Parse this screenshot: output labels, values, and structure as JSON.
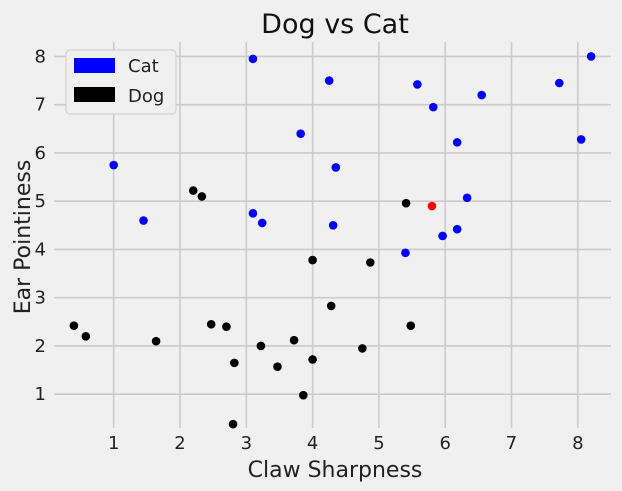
{
  "chart_data": {
    "type": "scatter",
    "title": "Dog vs Cat",
    "xlabel": "Claw Sharpness",
    "ylabel": "Ear Pointiness",
    "xlim": [
      0.1,
      8.5
    ],
    "ylim": [
      0.3,
      8.3
    ],
    "xticks": [
      1,
      2,
      3,
      4,
      5,
      6,
      7,
      8
    ],
    "yticks": [
      1,
      2,
      3,
      4,
      5,
      6,
      7,
      8
    ],
    "grid": true,
    "legend_position": "top-left",
    "series": [
      {
        "name": "Cat",
        "color": "#0000ff",
        "points": [
          [
            3.1,
            7.95
          ],
          [
            4.25,
            7.5
          ],
          [
            5.58,
            7.42
          ],
          [
            5.82,
            6.95
          ],
          [
            6.55,
            7.2
          ],
          [
            7.72,
            7.45
          ],
          [
            8.2,
            8.0
          ],
          [
            3.82,
            6.4
          ],
          [
            6.18,
            6.22
          ],
          [
            8.05,
            6.28
          ],
          [
            1.0,
            5.75
          ],
          [
            4.35,
            5.7
          ],
          [
            6.33,
            5.07
          ],
          [
            1.45,
            4.6
          ],
          [
            3.1,
            4.75
          ],
          [
            3.24,
            4.55
          ],
          [
            4.31,
            4.5
          ],
          [
            5.4,
            3.93
          ],
          [
            5.96,
            4.28
          ],
          [
            6.18,
            4.42
          ]
        ]
      },
      {
        "name": "Dog",
        "color": "#000000",
        "points": [
          [
            2.2,
            5.22
          ],
          [
            2.33,
            5.1
          ],
          [
            5.41,
            4.96
          ],
          [
            4.0,
            3.78
          ],
          [
            4.87,
            3.73
          ],
          [
            4.28,
            2.83
          ],
          [
            0.4,
            2.42
          ],
          [
            0.58,
            2.2
          ],
          [
            1.64,
            2.1
          ],
          [
            2.47,
            2.45
          ],
          [
            2.7,
            2.4
          ],
          [
            3.22,
            2.0
          ],
          [
            3.72,
            2.12
          ],
          [
            5.48,
            2.42
          ],
          [
            2.82,
            1.65
          ],
          [
            3.47,
            1.57
          ],
          [
            4.0,
            1.72
          ],
          [
            4.75,
            1.95
          ],
          [
            3.86,
            0.98
          ],
          [
            2.8,
            0.38
          ]
        ]
      }
    ],
    "highlight": {
      "color": "#ff0000",
      "point": [
        5.8,
        4.9
      ]
    }
  }
}
